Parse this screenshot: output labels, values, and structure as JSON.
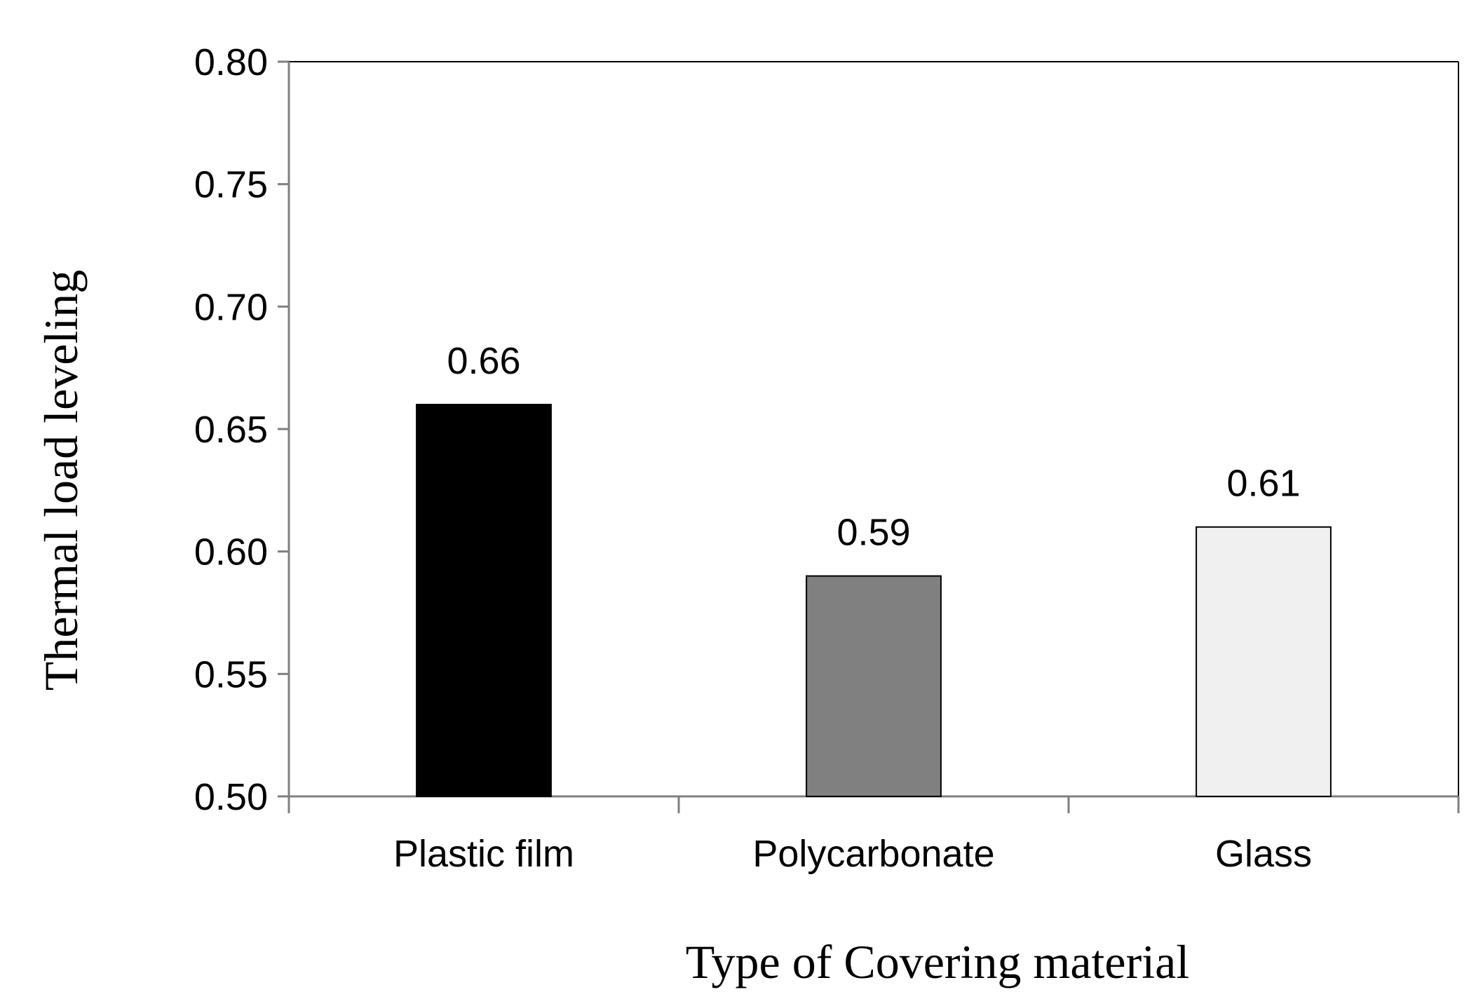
{
  "chart_data": {
    "type": "bar",
    "title": "",
    "xlabel": "Type of Covering  material",
    "ylabel": "Thermal load leveling",
    "categories": [
      "Plastic film",
      "Polycarbonate",
      "Glass"
    ],
    "values": [
      0.66,
      0.59,
      0.61
    ],
    "data_labels": [
      "0.66",
      "0.59",
      "0.61"
    ],
    "bar_colors": [
      "#000000",
      "#808080",
      "#f0f0f0"
    ],
    "ylim": [
      0.5,
      0.8
    ],
    "yticks": [
      0.5,
      0.55,
      0.6,
      0.65,
      0.7,
      0.75,
      0.8
    ],
    "ytick_labels": [
      "0.50",
      "0.55",
      "0.60",
      "0.65",
      "0.70",
      "0.75",
      "0.80"
    ],
    "grid": false,
    "legend": "none"
  }
}
